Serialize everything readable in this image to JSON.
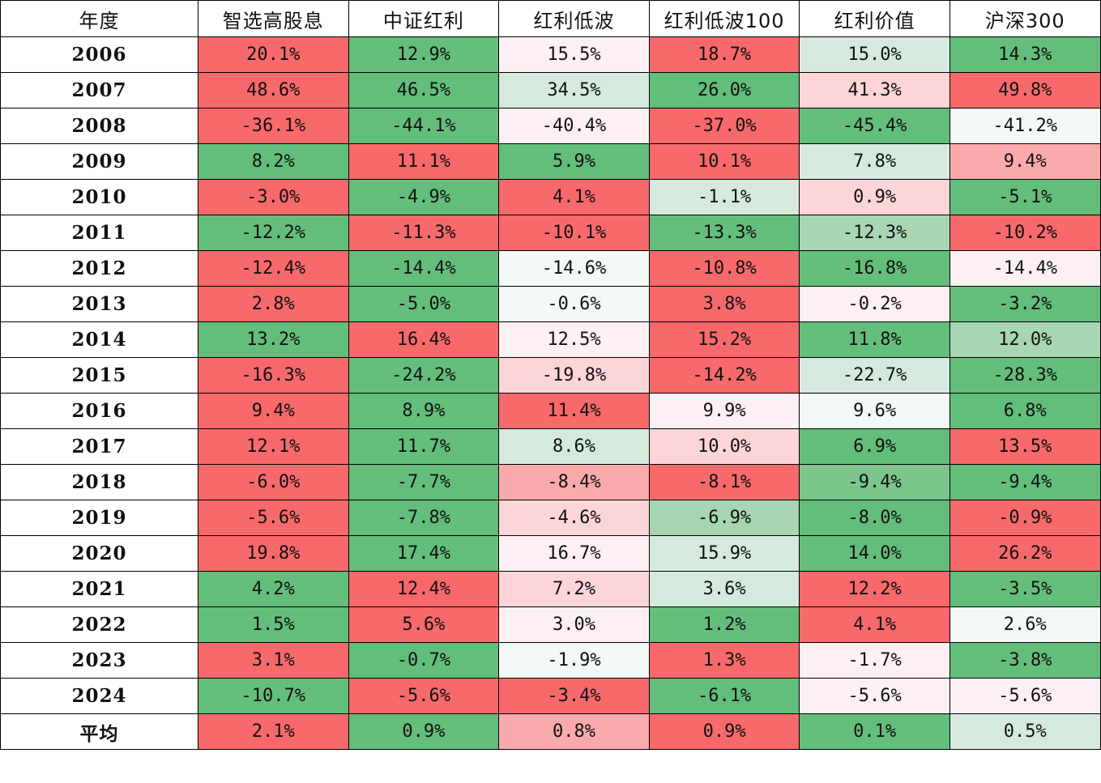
{
  "table": {
    "headers": [
      "年度",
      "智选高股息",
      "中证红利",
      "红利低波",
      "红利低波100",
      "红利价值",
      "沪深300"
    ],
    "colors": {
      "R": "#f8696b",
      "r": "#fbaaac",
      "p": "#fcd5d8",
      "w": "#fdf0f3",
      "n": "#f3f9f5",
      "m": "#d5eadd",
      "l": "#a7d6b3",
      "k": "#7cc58c",
      "G": "#63be7b"
    },
    "rows": [
      {
        "label": "2006",
        "values": [
          "20.1%",
          "12.9%",
          "15.5%",
          "18.7%",
          "15.0%",
          "14.3%"
        ],
        "shades": [
          "R",
          "G",
          "w",
          "R",
          "m",
          "G"
        ]
      },
      {
        "label": "2007",
        "values": [
          "48.6%",
          "46.5%",
          "34.5%",
          "26.0%",
          "41.3%",
          "49.8%"
        ],
        "shades": [
          "R",
          "G",
          "m",
          "G",
          "p",
          "R"
        ]
      },
      {
        "label": "2008",
        "values": [
          "-36.1%",
          "-44.1%",
          "-40.4%",
          "-37.0%",
          "-45.4%",
          "-41.2%"
        ],
        "shades": [
          "R",
          "G",
          "w",
          "R",
          "G",
          "n"
        ]
      },
      {
        "label": "2009",
        "values": [
          "8.2%",
          "11.1%",
          "5.9%",
          "10.1%",
          "7.8%",
          "9.4%"
        ],
        "shades": [
          "G",
          "R",
          "G",
          "R",
          "m",
          "r"
        ]
      },
      {
        "label": "2010",
        "values": [
          "-3.0%",
          "-4.9%",
          "4.1%",
          "-1.1%",
          "0.9%",
          "-5.1%"
        ],
        "shades": [
          "R",
          "G",
          "R",
          "m",
          "p",
          "G"
        ]
      },
      {
        "label": "2011",
        "values": [
          "-12.2%",
          "-11.3%",
          "-10.1%",
          "-13.3%",
          "-12.3%",
          "-10.2%"
        ],
        "shades": [
          "G",
          "R",
          "R",
          "G",
          "l",
          "R"
        ]
      },
      {
        "label": "2012",
        "values": [
          "-12.4%",
          "-14.4%",
          "-14.6%",
          "-10.8%",
          "-16.8%",
          "-14.4%"
        ],
        "shades": [
          "R",
          "G",
          "n",
          "R",
          "G",
          "w"
        ]
      },
      {
        "label": "2013",
        "values": [
          "2.8%",
          "-5.0%",
          "-0.6%",
          "3.8%",
          "-0.2%",
          "-3.2%"
        ],
        "shades": [
          "R",
          "G",
          "n",
          "R",
          "w",
          "G"
        ]
      },
      {
        "label": "2014",
        "values": [
          "13.2%",
          "16.4%",
          "12.5%",
          "15.2%",
          "11.8%",
          "12.0%"
        ],
        "shades": [
          "G",
          "R",
          "w",
          "R",
          "G",
          "l"
        ]
      },
      {
        "label": "2015",
        "values": [
          "-16.3%",
          "-24.2%",
          "-19.8%",
          "-14.2%",
          "-22.7%",
          "-28.3%"
        ],
        "shades": [
          "R",
          "G",
          "p",
          "R",
          "m",
          "G"
        ]
      },
      {
        "label": "2016",
        "values": [
          "9.4%",
          "8.9%",
          "11.4%",
          "9.9%",
          "9.6%",
          "6.8%"
        ],
        "shades": [
          "R",
          "G",
          "R",
          "w",
          "n",
          "G"
        ]
      },
      {
        "label": "2017",
        "values": [
          "12.1%",
          "11.7%",
          "8.6%",
          "10.0%",
          "6.9%",
          "13.5%"
        ],
        "shades": [
          "R",
          "G",
          "m",
          "p",
          "G",
          "R"
        ]
      },
      {
        "label": "2018",
        "values": [
          "-6.0%",
          "-7.7%",
          "-8.4%",
          "-8.1%",
          "-9.4%",
          "-9.4%"
        ],
        "shades": [
          "R",
          "G",
          "r",
          "R",
          "k",
          "G"
        ]
      },
      {
        "label": "2019",
        "values": [
          "-5.6%",
          "-7.8%",
          "-4.6%",
          "-6.9%",
          "-8.0%",
          "-0.9%"
        ],
        "shades": [
          "R",
          "G",
          "p",
          "l",
          "G",
          "R"
        ]
      },
      {
        "label": "2020",
        "values": [
          "19.8%",
          "17.4%",
          "16.7%",
          "15.9%",
          "14.0%",
          "26.2%"
        ],
        "shades": [
          "R",
          "G",
          "w",
          "m",
          "G",
          "R"
        ]
      },
      {
        "label": "2021",
        "values": [
          "4.2%",
          "12.4%",
          "7.2%",
          "3.6%",
          "12.2%",
          "-3.5%"
        ],
        "shades": [
          "G",
          "R",
          "p",
          "m",
          "R",
          "G"
        ]
      },
      {
        "label": "2022",
        "values": [
          "1.5%",
          "5.6%",
          "3.0%",
          "1.2%",
          "4.1%",
          "2.6%"
        ],
        "shades": [
          "G",
          "R",
          "w",
          "G",
          "R",
          "n"
        ]
      },
      {
        "label": "2023",
        "values": [
          "3.1%",
          "-0.7%",
          "-1.9%",
          "1.3%",
          "-1.7%",
          "-3.8%"
        ],
        "shades": [
          "R",
          "G",
          "n",
          "R",
          "w",
          "G"
        ]
      },
      {
        "label": "2024",
        "values": [
          "-10.7%",
          "-5.6%",
          "-3.4%",
          "-6.1%",
          "-5.6%",
          "-5.6%"
        ],
        "shades": [
          "G",
          "R",
          "R",
          "G",
          "w",
          "w"
        ]
      },
      {
        "label": "平均",
        "values": [
          "2.1%",
          "0.9%",
          "0.8%",
          "0.9%",
          "0.1%",
          "0.5%"
        ],
        "shades": [
          "R",
          "G",
          "r",
          "R",
          "G",
          "m"
        ]
      }
    ]
  }
}
